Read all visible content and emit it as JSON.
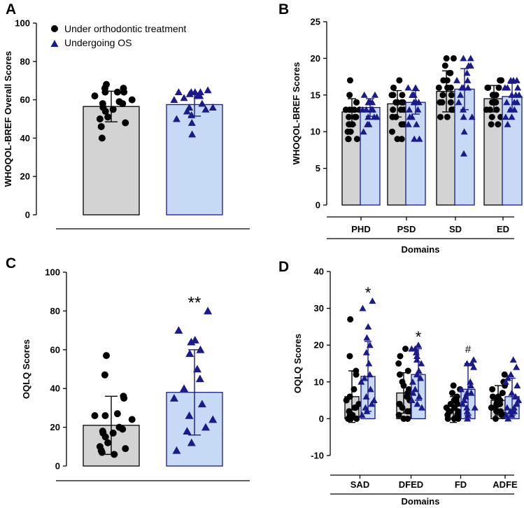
{
  "colors": {
    "group1_fill": "#d3d3d3",
    "group1_marker": "#000000",
    "group2_fill": "#c6daf5",
    "group2_edge": "#1a1a8c",
    "group2_marker": "#1a1a8c",
    "axis": "#000000"
  },
  "legend": {
    "items": [
      {
        "label": "Under orthodontic treatment",
        "marker": "circle"
      },
      {
        "label": "Undergoing OS",
        "marker": "triangle"
      }
    ]
  },
  "chart_data": [
    {
      "panel": "A",
      "type": "bar",
      "ylabel": "WHOQOL-BREF Overall Scores",
      "xlabel": "",
      "ylim": [
        0,
        100
      ],
      "yticks": [
        0,
        20,
        40,
        60,
        80,
        100
      ],
      "categories": [
        ""
      ],
      "series": [
        {
          "name": "Under orthodontic treatment",
          "values": [
            56.5
          ],
          "sd": [
            8
          ],
          "points": [
            [
              68,
              66,
              66,
              64,
              64,
              64,
              62,
              60,
              59,
              58,
              58,
              56,
              55,
              54,
              51,
              50,
              48,
              46,
              40
            ]
          ]
        },
        {
          "name": "Undergoing OS",
          "values": [
            57.5
          ],
          "sd": [
            6
          ],
          "points": [
            [
              65,
              64,
              64,
              64,
              64,
              63,
              62,
              62,
              61,
              60,
              58,
              56,
              56,
              55,
              54,
              52,
              50,
              48,
              42
            ]
          ]
        }
      ],
      "annotations": []
    },
    {
      "panel": "B",
      "type": "bar",
      "ylabel": "WHOQOL-BREF Scores",
      "xlabel": "Domains",
      "ylim": [
        0,
        25
      ],
      "yticks": [
        0,
        5,
        10,
        15,
        20,
        25
      ],
      "categories": [
        "PHD",
        "PSD",
        "SD",
        "ED"
      ],
      "series": [
        {
          "name": "Under orthodontic treatment",
          "values": [
            12.7,
            13.8,
            15.5,
            14.5
          ],
          "sd": [
            1.8,
            1.8,
            2.8,
            1.8
          ],
          "points": [
            [
              17,
              15,
              14,
              14,
              13,
              13,
              13,
              13,
              12,
              12,
              12,
              11,
              11,
              11,
              10,
              10,
              9,
              9,
              9
            ],
            [
              17,
              16,
              15,
              15,
              15,
              14,
              14,
              14,
              14,
              13,
              13,
              13,
              12,
              12,
              11,
              11,
              10,
              9,
              9
            ],
            [
              20,
              20,
              19,
              18,
              18,
              17,
              17,
              16,
              16,
              16,
              15,
              15,
              14,
              14,
              14,
              13,
              13,
              12,
              12
            ],
            [
              17,
              17,
              17,
              16,
              16,
              16,
              15,
              15,
              15,
              14,
              14,
              14,
              13,
              13,
              13,
              12,
              12,
              11,
              11
            ]
          ]
        },
        {
          "name": "Undergoing OS",
          "values": [
            13.3,
            14.0,
            15.8,
            14.8
          ],
          "sd": [
            1.2,
            1.6,
            2.8,
            1.8
          ],
          "points": [
            [
              15,
              15,
              14,
              14,
              14,
              14,
              13,
              13,
              13,
              13,
              13,
              12,
              12,
              12,
              11,
              11,
              10
            ],
            [
              16,
              16,
              15,
              15,
              15,
              14,
              14,
              14,
              14,
              13,
              13,
              12,
              12,
              11,
              11,
              9,
              9
            ],
            [
              20,
              20,
              19,
              19,
              18,
              17,
              17,
              16,
              16,
              16,
              15,
              14,
              13,
              12,
              12,
              10,
              7
            ],
            [
              17,
              17,
              17,
              16,
              16,
              16,
              15,
              15,
              15,
              14,
              14,
              14,
              13,
              13,
              12,
              12,
              11
            ]
          ]
        }
      ],
      "annotations": []
    },
    {
      "panel": "C",
      "type": "bar",
      "ylabel": "OQLQ Scores",
      "xlabel": "",
      "ylim": [
        0,
        100
      ],
      "yticks": [
        0,
        20,
        40,
        60,
        80,
        100
      ],
      "categories": [
        ""
      ],
      "series": [
        {
          "name": "Under orthodontic treatment",
          "values": [
            21
          ],
          "sd": [
            15
          ],
          "points": [
            [
              57,
              47,
              36,
              35,
              27,
              26,
              26,
              24,
              20,
              19,
              18,
              17,
              17,
              15,
              12,
              10,
              9,
              8,
              7,
              6
            ]
          ]
        },
        {
          "name": "Undergoing OS",
          "values": [
            38
          ],
          "sd": [
            22
          ],
          "points": [
            [
              80,
              70,
              65,
              64,
              60,
              58,
              50,
              45,
              40,
              35,
              32,
              26,
              24,
              20,
              18,
              12,
              8
            ]
          ]
        }
      ],
      "annotations": [
        {
          "label": "**",
          "category": 0,
          "series": 1
        }
      ]
    },
    {
      "panel": "D",
      "type": "bar",
      "ylabel": "OQLQ Scores",
      "xlabel": "Domains",
      "ylim": [
        -10,
        40
      ],
      "yticks": [
        -10,
        0,
        10,
        20,
        30,
        40
      ],
      "categories": [
        "SAD",
        "DFED",
        "FD",
        "ADFE"
      ],
      "series": [
        {
          "name": "Under orthodontic treatment",
          "values": [
            6,
            7,
            2.5,
            5
          ],
          "sd": [
            7,
            5.5,
            3.5,
            4
          ],
          "points": [
            [
              27,
              17,
              13,
              12,
              8,
              6,
              5,
              4,
              3,
              3,
              2,
              2,
              1,
              1,
              0,
              0,
              0,
              0,
              0
            ],
            [
              19,
              17,
              15,
              13,
              12,
              10,
              9,
              8,
              7,
              6,
              5,
              4,
              4,
              3,
              2,
              2,
              1,
              0,
              0
            ],
            [
              9,
              8,
              7,
              6,
              5,
              5,
              4,
              4,
              3,
              3,
              2,
              2,
              2,
              1,
              1,
              1,
              0,
              0,
              0
            ],
            [
              12,
              10,
              9,
              8,
              7,
              6,
              6,
              5,
              5,
              4,
              4,
              4,
              3,
              3,
              2,
              2,
              1,
              1,
              0
            ]
          ]
        },
        {
          "name": "Undergoing OS",
          "values": [
            11.5,
            12,
            8,
            6
          ],
          "sd": [
            9.5,
            7,
            7,
            5
          ],
          "points": [
            [
              32,
              30,
              25,
              22,
              20,
              18,
              15,
              12,
              11,
              10,
              8,
              6,
              5,
              4,
              3,
              2,
              1
            ],
            [
              20,
              19,
              19,
              18,
              17,
              16,
              15,
              13,
              12,
              11,
              10,
              8,
              7,
              6,
              5,
              4,
              3
            ],
            [
              16,
              15,
              15,
              14,
              10,
              9,
              8,
              7,
              7,
              6,
              5,
              4,
              3,
              3,
              2,
              1,
              0
            ],
            [
              16,
              14,
              12,
              11,
              10,
              9,
              7,
              6,
              5,
              4,
              3,
              3,
              2,
              2,
              1,
              1,
              0
            ]
          ]
        }
      ],
      "annotations": [
        {
          "label": "*",
          "category": 0,
          "series": 1
        },
        {
          "label": "*",
          "category": 1,
          "series": 1
        },
        {
          "label": "#",
          "category": 2,
          "series": 1
        }
      ]
    }
  ]
}
